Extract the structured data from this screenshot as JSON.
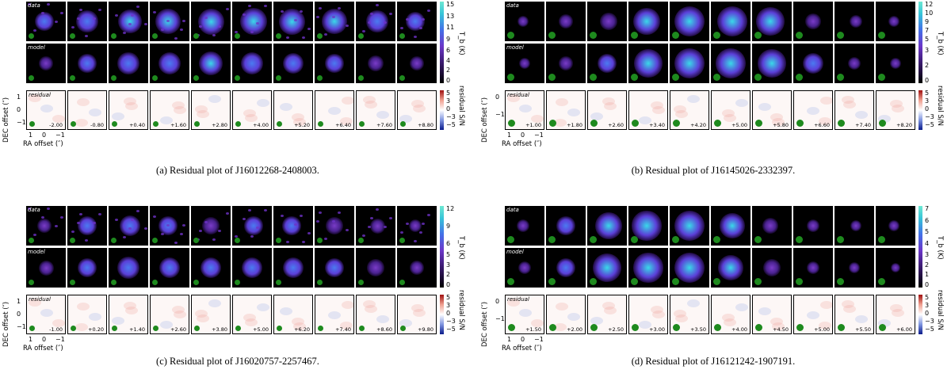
{
  "row_labels": {
    "data": "data",
    "model": "model",
    "residual": "residual"
  },
  "axes": {
    "xlabel": "RA offset  (″)",
    "ylabel": "DEC offset  (″)",
    "x_ticks": [
      "1",
      "0",
      "−1"
    ],
    "y_ticks_a": [
      "1",
      "0",
      "−1"
    ],
    "y_ticks_b": [
      "0",
      "−1"
    ]
  },
  "colorbar_titles": {
    "tb": "T_b (K)",
    "resid": "residual S/N"
  },
  "resid_ticks": [
    "5",
    "3",
    "0",
    "−3",
    "−5"
  ],
  "panels": [
    {
      "id": "a",
      "caption": "(a) Residual plot of J16012268-2408003.",
      "channels": [
        "-2.00",
        "-0.80",
        "+0.40",
        "+1.60",
        "+2.80",
        "+4.00",
        "+5.20",
        "+6.40",
        "+7.60",
        "+8.80"
      ],
      "cbar_data_ticks": [
        "15",
        "13",
        "11",
        "9"
      ],
      "cbar_model_ticks": [
        "6",
        "4",
        "2",
        "0"
      ],
      "data_intensity": [
        0.45,
        0.55,
        0.65,
        0.7,
        0.75,
        0.8,
        0.75,
        0.7,
        0.55,
        0.45
      ],
      "model_intensity": [
        0.2,
        0.4,
        0.55,
        0.6,
        0.65,
        0.6,
        0.5,
        0.4,
        0.3,
        0.2
      ]
    },
    {
      "id": "b",
      "caption": "(b) Residual plot of J16145026-2332397.",
      "channels": [
        "+1.00",
        "+1.80",
        "+2.60",
        "+3.40",
        "+4.20",
        "+5.00",
        "+5.80",
        "+6.60",
        "+7.40",
        "+8.20"
      ],
      "cbar_data_ticks": [
        "12",
        "10",
        "9",
        "7",
        "5"
      ],
      "cbar_model_ticks": [
        "3",
        "2",
        "0"
      ],
      "data_intensity": [
        0.1,
        0.2,
        0.35,
        0.8,
        0.95,
        0.95,
        0.85,
        0.3,
        0.15,
        0.1
      ],
      "model_intensity": [
        0.1,
        0.2,
        0.45,
        0.85,
        0.95,
        0.95,
        0.85,
        0.5,
        0.15,
        0.05
      ]
    },
    {
      "id": "c",
      "caption": "(c) Residual plot of J16020757-2257467.",
      "channels": [
        "-1.00",
        "+0.20",
        "+1.40",
        "+2.60",
        "+3.80",
        "+5.00",
        "+6.20",
        "+7.40",
        "+8.60",
        "+9.80"
      ],
      "cbar_data_ticks": [
        "12",
        "9",
        "6"
      ],
      "cbar_model_ticks": [
        "5",
        "3",
        "2",
        "0"
      ],
      "data_intensity": [
        0.2,
        0.45,
        0.5,
        0.4,
        0.35,
        0.4,
        0.4,
        0.35,
        0.25,
        0.15
      ],
      "model_intensity": [
        0.25,
        0.45,
        0.55,
        0.5,
        0.5,
        0.5,
        0.5,
        0.45,
        0.35,
        0.2
      ]
    },
    {
      "id": "d",
      "caption": "(d) Residual plot of J16121242-1907191.",
      "channels": [
        "+1.50",
        "+2.00",
        "+2.50",
        "+3.00",
        "+3.50",
        "+4.00",
        "+4.50",
        "+5.00",
        "+5.50",
        "+6.00"
      ],
      "cbar_data_ticks": [
        "7",
        "6",
        "5",
        "4"
      ],
      "cbar_model_ticks": [
        "3",
        "2",
        "1",
        "0"
      ],
      "data_intensity": [
        0.15,
        0.4,
        0.8,
        0.9,
        0.95,
        0.7,
        0.3,
        0.15,
        0.1,
        0.05
      ],
      "model_intensity": [
        0.15,
        0.45,
        0.85,
        0.9,
        0.95,
        0.7,
        0.35,
        0.15,
        0.05,
        0.03
      ]
    }
  ]
}
